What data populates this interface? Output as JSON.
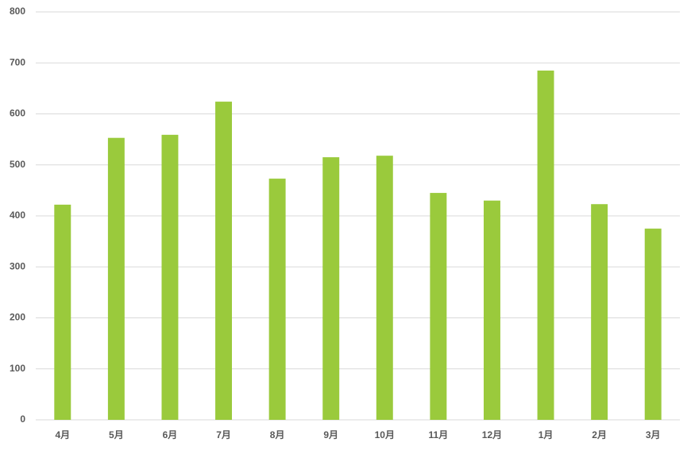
{
  "chart_data": {
    "type": "bar",
    "categories": [
      "4月",
      "5月",
      "6月",
      "7月",
      "8月",
      "9月",
      "10月",
      "11月",
      "12月",
      "1月",
      "2月",
      "3月"
    ],
    "values": [
      422,
      553,
      559,
      624,
      473,
      515,
      518,
      445,
      430,
      685,
      423,
      375
    ],
    "color": "#9aca3c",
    "ylim": [
      0,
      800
    ],
    "yticks": [
      0,
      100,
      200,
      300,
      400,
      500,
      600,
      700,
      800
    ],
    "grid": true
  }
}
